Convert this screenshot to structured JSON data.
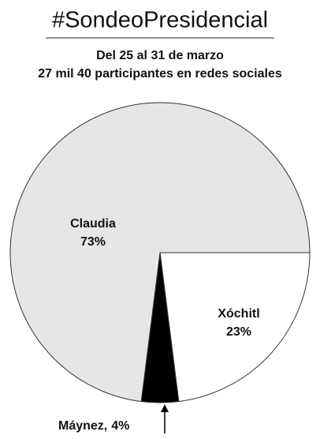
{
  "chart_data": {
    "type": "pie",
    "title": "#SondeoPresidencial",
    "subtitle": [
      "Del 25 al 31 de marzo",
      "27 mil 40 participantes en redes sociales"
    ],
    "categories": [
      "Xóchitl",
      "Máynez,",
      "Claudia"
    ],
    "values": [
      23,
      4,
      73
    ],
    "value_labels": [
      "23%",
      "4%",
      "73%"
    ],
    "colors": [
      "#ffffff",
      "#000000",
      "#e6e6e6"
    ]
  }
}
